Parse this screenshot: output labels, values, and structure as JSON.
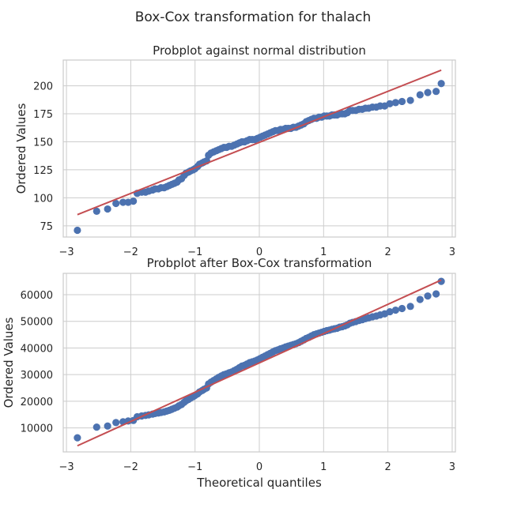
{
  "figure": {
    "suptitle": "Box-Cox transformation for thalach"
  },
  "chart_data": [
    {
      "type": "scatter",
      "title": "Probplot against normal distribution",
      "xlabel": "",
      "ylabel": "Ordered Values",
      "xlim": [
        -3.05,
        3.05
      ],
      "ylim": [
        65,
        223
      ],
      "xticks": [
        -3,
        -2,
        -1,
        0,
        1,
        2,
        3
      ],
      "xtick_labels": [
        "−3",
        "−2",
        "−1",
        "0",
        "1",
        "2",
        "3"
      ],
      "yticks": [
        75,
        100,
        125,
        150,
        175,
        200
      ],
      "ytick_labels": [
        "75",
        "100",
        "125",
        "150",
        "175",
        "200"
      ],
      "grid": true,
      "fit_line": {
        "x": [
          -2.83,
          2.83
        ],
        "y": [
          85,
          214
        ]
      },
      "points": [
        [
          -2.83,
          71
        ],
        [
          -2.53,
          88
        ],
        [
          -2.36,
          90
        ],
        [
          -2.23,
          95
        ],
        [
          -2.12,
          96
        ],
        [
          -2.04,
          96
        ],
        [
          -1.96,
          97
        ],
        [
          -1.9,
          104
        ],
        [
          -1.83,
          105
        ],
        [
          -1.77,
          105
        ],
        [
          -1.72,
          106
        ],
        [
          -1.66,
          107
        ],
        [
          -1.62,
          108
        ],
        [
          -1.57,
          108
        ],
        [
          -1.53,
          109
        ],
        [
          -1.48,
          109
        ],
        [
          -1.44,
          110
        ],
        [
          -1.4,
          111
        ],
        [
          -1.36,
          112
        ],
        [
          -1.32,
          113
        ],
        [
          -1.28,
          114
        ],
        [
          -1.25,
          116
        ],
        [
          -1.21,
          117
        ],
        [
          -1.17,
          120
        ],
        [
          -1.14,
          122
        ],
        [
          -1.1,
          123
        ],
        [
          -1.07,
          124
        ],
        [
          -1.03,
          125
        ],
        [
          -1.0,
          126
        ],
        [
          -0.96,
          128
        ],
        [
          -0.93,
          130
        ],
        [
          -0.89,
          131
        ],
        [
          -0.86,
          132
        ],
        [
          -0.82,
          133
        ],
        [
          -0.79,
          138
        ],
        [
          -0.75,
          140
        ],
        [
          -0.71,
          141
        ],
        [
          -0.67,
          142
        ],
        [
          -0.63,
          143
        ],
        [
          -0.59,
          144
        ],
        [
          -0.55,
          145
        ],
        [
          -0.51,
          145
        ],
        [
          -0.47,
          146
        ],
        [
          -0.43,
          146
        ],
        [
          -0.39,
          147
        ],
        [
          -0.35,
          148
        ],
        [
          -0.31,
          149
        ],
        [
          -0.27,
          150
        ],
        [
          -0.23,
          150
        ],
        [
          -0.19,
          151
        ],
        [
          -0.15,
          152
        ],
        [
          -0.11,
          152
        ],
        [
          -0.07,
          152
        ],
        [
          -0.03,
          153
        ],
        [
          0.01,
          154
        ],
        [
          0.05,
          155
        ],
        [
          0.09,
          156
        ],
        [
          0.13,
          157
        ],
        [
          0.17,
          158
        ],
        [
          0.21,
          159
        ],
        [
          0.25,
          160
        ],
        [
          0.29,
          160
        ],
        [
          0.33,
          161
        ],
        [
          0.37,
          161
        ],
        [
          0.41,
          162
        ],
        [
          0.45,
          162
        ],
        [
          0.49,
          162
        ],
        [
          0.53,
          163
        ],
        [
          0.57,
          163
        ],
        [
          0.61,
          164
        ],
        [
          0.65,
          165
        ],
        [
          0.69,
          166
        ],
        [
          0.73,
          168
        ],
        [
          0.77,
          169
        ],
        [
          0.81,
          170
        ],
        [
          0.85,
          171
        ],
        [
          0.89,
          171
        ],
        [
          0.93,
          172
        ],
        [
          0.97,
          172
        ],
        [
          1.01,
          173
        ],
        [
          1.05,
          173
        ],
        [
          1.09,
          173
        ],
        [
          1.13,
          174
        ],
        [
          1.17,
          174
        ],
        [
          1.21,
          174
        ],
        [
          1.25,
          175
        ],
        [
          1.29,
          175
        ],
        [
          1.33,
          175
        ],
        [
          1.37,
          176
        ],
        [
          1.41,
          178
        ],
        [
          1.45,
          178
        ],
        [
          1.5,
          178
        ],
        [
          1.55,
          179
        ],
        [
          1.6,
          179
        ],
        [
          1.65,
          180
        ],
        [
          1.7,
          180
        ],
        [
          1.76,
          181
        ],
        [
          1.82,
          181
        ],
        [
          1.88,
          182
        ],
        [
          1.95,
          182
        ],
        [
          2.03,
          184
        ],
        [
          2.12,
          185
        ],
        [
          2.22,
          186
        ],
        [
          2.35,
          187
        ],
        [
          2.5,
          192
        ],
        [
          2.62,
          194
        ],
        [
          2.75,
          195
        ],
        [
          2.83,
          202
        ]
      ]
    },
    {
      "type": "scatter",
      "title": "Probplot after Box-Cox transformation",
      "xlabel": "Theoretical quantiles",
      "ylabel": "Ordered Values",
      "xlim": [
        -3.05,
        3.05
      ],
      "ylim": [
        1000,
        68000
      ],
      "xticks": [
        -3,
        -2,
        -1,
        0,
        1,
        2,
        3
      ],
      "xtick_labels": [
        "−3",
        "−2",
        "−1",
        "0",
        "1",
        "2",
        "3"
      ],
      "yticks": [
        10000,
        20000,
        30000,
        40000,
        50000,
        60000
      ],
      "ytick_labels": [
        "10000",
        "20000",
        "30000",
        "40000",
        "50000",
        "60000"
      ],
      "grid": true,
      "fit_line": {
        "x": [
          -2.83,
          2.83
        ],
        "y": [
          3300,
          65500
        ]
      },
      "points": [
        [
          -2.83,
          6300
        ],
        [
          -2.53,
          10300
        ],
        [
          -2.36,
          10700
        ],
        [
          -2.23,
          12000
        ],
        [
          -2.12,
          12300
        ],
        [
          -2.04,
          12600
        ],
        [
          -1.96,
          12800
        ],
        [
          -1.9,
          14200
        ],
        [
          -1.83,
          14500
        ],
        [
          -1.77,
          14700
        ],
        [
          -1.72,
          14900
        ],
        [
          -1.66,
          15200
        ],
        [
          -1.62,
          15400
        ],
        [
          -1.57,
          15600
        ],
        [
          -1.53,
          15800
        ],
        [
          -1.48,
          16000
        ],
        [
          -1.44,
          16300
        ],
        [
          -1.4,
          16600
        ],
        [
          -1.36,
          17000
        ],
        [
          -1.32,
          17400
        ],
        [
          -1.28,
          17800
        ],
        [
          -1.25,
          18300
        ],
        [
          -1.21,
          18800
        ],
        [
          -1.17,
          19600
        ],
        [
          -1.14,
          20200
        ],
        [
          -1.1,
          20700
        ],
        [
          -1.07,
          21200
        ],
        [
          -1.03,
          21700
        ],
        [
          -1.0,
          22200
        ],
        [
          -0.96,
          22800
        ],
        [
          -0.93,
          23500
        ],
        [
          -0.89,
          24000
        ],
        [
          -0.86,
          24500
        ],
        [
          -0.82,
          25000
        ],
        [
          -0.79,
          26500
        ],
        [
          -0.75,
          27200
        ],
        [
          -0.71,
          27800
        ],
        [
          -0.67,
          28400
        ],
        [
          -0.63,
          29000
        ],
        [
          -0.59,
          29500
        ],
        [
          -0.55,
          30000
        ],
        [
          -0.51,
          30300
        ],
        [
          -0.47,
          30700
        ],
        [
          -0.43,
          31000
        ],
        [
          -0.39,
          31500
        ],
        [
          -0.35,
          32000
        ],
        [
          -0.31,
          32600
        ],
        [
          -0.27,
          33200
        ],
        [
          -0.23,
          33500
        ],
        [
          -0.19,
          34000
        ],
        [
          -0.15,
          34500
        ],
        [
          -0.11,
          34800
        ],
        [
          -0.07,
          35100
        ],
        [
          -0.03,
          35500
        ],
        [
          0.01,
          36000
        ],
        [
          0.05,
          36500
        ],
        [
          0.09,
          37000
        ],
        [
          0.13,
          37500
        ],
        [
          0.17,
          38000
        ],
        [
          0.21,
          38500
        ],
        [
          0.25,
          39000
        ],
        [
          0.29,
          39300
        ],
        [
          0.33,
          39700
        ],
        [
          0.37,
          40000
        ],
        [
          0.41,
          40400
        ],
        [
          0.45,
          40700
        ],
        [
          0.49,
          41000
        ],
        [
          0.53,
          41300
        ],
        [
          0.57,
          41600
        ],
        [
          0.61,
          42000
        ],
        [
          0.65,
          42500
        ],
        [
          0.69,
          43000
        ],
        [
          0.73,
          43600
        ],
        [
          0.77,
          44000
        ],
        [
          0.81,
          44500
        ],
        [
          0.85,
          45000
        ],
        [
          0.89,
          45300
        ],
        [
          0.93,
          45600
        ],
        [
          0.97,
          45900
        ],
        [
          1.01,
          46200
        ],
        [
          1.05,
          46500
        ],
        [
          1.09,
          46700
        ],
        [
          1.13,
          47000
        ],
        [
          1.17,
          47200
        ],
        [
          1.21,
          47400
        ],
        [
          1.25,
          47800
        ],
        [
          1.29,
          48000
        ],
        [
          1.33,
          48300
        ],
        [
          1.37,
          48700
        ],
        [
          1.41,
          49300
        ],
        [
          1.45,
          49600
        ],
        [
          1.5,
          49900
        ],
        [
          1.55,
          50300
        ],
        [
          1.6,
          50600
        ],
        [
          1.65,
          51000
        ],
        [
          1.7,
          51300
        ],
        [
          1.76,
          51700
        ],
        [
          1.82,
          52000
        ],
        [
          1.88,
          52400
        ],
        [
          1.95,
          52800
        ],
        [
          2.03,
          53600
        ],
        [
          2.12,
          54200
        ],
        [
          2.22,
          54800
        ],
        [
          2.35,
          55600
        ],
        [
          2.5,
          58200
        ],
        [
          2.62,
          59500
        ],
        [
          2.75,
          60300
        ],
        [
          2.83,
          65000
        ]
      ]
    }
  ]
}
